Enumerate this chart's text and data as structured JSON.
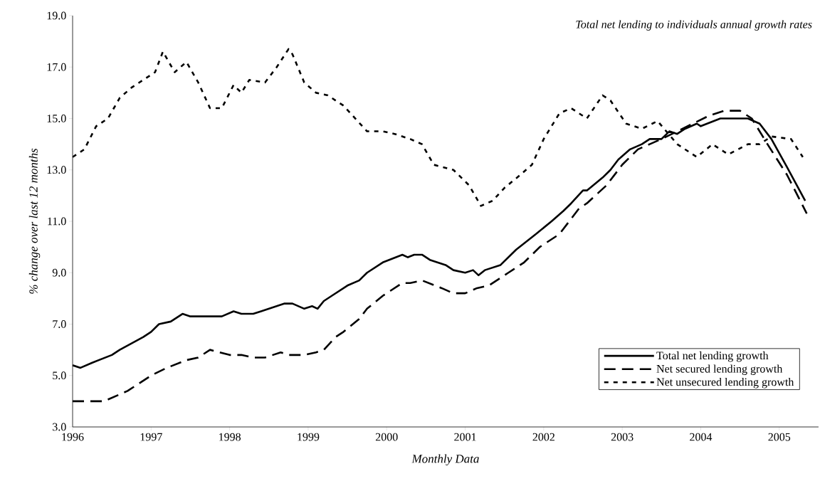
{
  "chart_data": {
    "type": "line",
    "title": "Total net lending to individuals annual growth rates",
    "xlabel": "Monthly Data",
    "ylabel": "% change over last 12 months",
    "xlim": [
      1996,
      2005.5
    ],
    "xticks": [
      1996,
      1997,
      1998,
      1999,
      2000,
      2001,
      2002,
      2003,
      2004,
      2005
    ],
    "ylim": [
      3,
      19
    ],
    "yticks": [
      {
        "value": 3,
        "label": "3.0"
      },
      {
        "value": 5,
        "label": "5.0"
      },
      {
        "value": 7,
        "label": "7.0"
      },
      {
        "value": 9,
        "label": "9.0"
      },
      {
        "value": 11,
        "label": "11.0"
      },
      {
        "value": 13,
        "label": "13.0"
      },
      {
        "value": 15,
        "label": "15.0"
      },
      {
        "value": 17,
        "label": "17.0"
      },
      {
        "value": 19,
        "label": "19.0"
      }
    ],
    "legend": "bottom right",
    "grid": false,
    "marker": "none",
    "series": [
      {
        "name": "Total net lending growth",
        "color": "#000000",
        "line_style": "solid",
        "x": [
          1996.0,
          1996.1,
          1996.25,
          1996.5,
          1996.6,
          1996.9,
          1997.0,
          1997.1,
          1997.25,
          1997.4,
          1997.5,
          1997.9,
          1998.05,
          1998.15,
          1998.3,
          1998.4,
          1998.7,
          1998.8,
          1998.95,
          1999.05,
          1999.12,
          1999.2,
          1999.3,
          1999.5,
          1999.65,
          1999.75,
          1999.95,
          2000.2,
          2000.27,
          2000.35,
          2000.45,
          2000.55,
          2000.75,
          2000.85,
          2001.0,
          2001.1,
          2001.17,
          2001.25,
          2001.45,
          2001.65,
          2001.9,
          2002.1,
          2002.25,
          2002.35,
          2002.5,
          2002.55,
          2002.75,
          2002.85,
          2002.95,
          2003.1,
          2003.25,
          2003.35,
          2003.5,
          2003.6,
          2003.7,
          2003.8,
          2003.95,
          2004.0,
          2004.25,
          2004.6,
          2004.75,
          2004.9,
          2005.1,
          2005.33
        ],
        "values": [
          5.4,
          5.3,
          5.5,
          5.8,
          6.0,
          6.5,
          6.7,
          7.0,
          7.1,
          7.4,
          7.3,
          7.3,
          7.5,
          7.4,
          7.4,
          7.5,
          7.8,
          7.8,
          7.6,
          7.7,
          7.6,
          7.9,
          8.1,
          8.5,
          8.7,
          9.0,
          9.4,
          9.7,
          9.6,
          9.7,
          9.7,
          9.5,
          9.3,
          9.1,
          9.0,
          9.1,
          8.9,
          9.1,
          9.3,
          9.9,
          10.5,
          11.0,
          11.4,
          11.7,
          12.2,
          12.2,
          12.7,
          13.0,
          13.4,
          13.8,
          14.0,
          14.2,
          14.2,
          14.5,
          14.4,
          14.6,
          14.8,
          14.7,
          15.0,
          15.0,
          14.8,
          14.2,
          13.1,
          11.8
        ]
      },
      {
        "name": "Net secured lending growth",
        "color": "#000000",
        "line_style": "dashed",
        "x": [
          1996.0,
          1996.4,
          1996.7,
          1997.0,
          1997.2,
          1997.45,
          1997.6,
          1997.75,
          1998.0,
          1998.15,
          1998.3,
          1998.45,
          1998.65,
          1998.75,
          1998.95,
          1999.1,
          1999.2,
          1999.35,
          1999.45,
          1999.65,
          1999.75,
          1999.95,
          2000.05,
          2000.2,
          2000.3,
          2000.45,
          2000.7,
          2000.85,
          2001.0,
          2001.15,
          2001.3,
          2001.55,
          2001.75,
          2001.95,
          2002.2,
          2002.45,
          2002.55,
          2002.8,
          2003.0,
          2003.2,
          2003.35,
          2003.5,
          2003.7,
          2003.9,
          2004.1,
          2004.3,
          2004.5,
          2004.65,
          2004.85,
          2005.1,
          2005.35
        ],
        "values": [
          4.0,
          4.0,
          4.4,
          5.0,
          5.3,
          5.6,
          5.7,
          6.0,
          5.8,
          5.8,
          5.7,
          5.7,
          5.9,
          5.8,
          5.8,
          5.9,
          6.0,
          6.5,
          6.7,
          7.2,
          7.6,
          8.1,
          8.3,
          8.6,
          8.6,
          8.7,
          8.4,
          8.2,
          8.2,
          8.4,
          8.5,
          9.0,
          9.4,
          10.0,
          10.5,
          11.5,
          11.7,
          12.4,
          13.2,
          13.8,
          14.0,
          14.2,
          14.5,
          14.8,
          15.1,
          15.3,
          15.3,
          15.0,
          14.0,
          12.8,
          11.3
        ]
      },
      {
        "name": "Net unsecured lending growth",
        "color": "#000000",
        "line_style": "dotted",
        "x": [
          1996.0,
          1996.15,
          1996.3,
          1996.45,
          1996.6,
          1996.75,
          1996.9,
          1997.05,
          1997.15,
          1997.3,
          1997.45,
          1997.6,
          1997.75,
          1997.9,
          1998.05,
          1998.15,
          1998.25,
          1998.45,
          1998.6,
          1998.75,
          1998.8,
          1998.95,
          1999.1,
          1999.25,
          1999.45,
          1999.75,
          1999.95,
          2000.1,
          2000.3,
          2000.45,
          2000.6,
          2000.85,
          2001.05,
          2001.2,
          2001.35,
          2001.5,
          2001.7,
          2001.85,
          2002.0,
          2002.2,
          2002.35,
          2002.55,
          2002.75,
          2002.85,
          2003.05,
          2003.25,
          2003.45,
          2003.7,
          2003.95,
          2004.15,
          2004.35,
          2004.6,
          2004.75,
          2004.9,
          2005.15,
          2005.3
        ],
        "values": [
          13.5,
          13.8,
          14.7,
          15.0,
          15.8,
          16.2,
          16.5,
          16.8,
          17.6,
          16.8,
          17.2,
          16.4,
          15.4,
          15.4,
          16.3,
          16.0,
          16.5,
          16.4,
          17.0,
          17.7,
          17.5,
          16.4,
          16.0,
          15.9,
          15.5,
          14.5,
          14.5,
          14.4,
          14.2,
          14.0,
          13.2,
          13.0,
          12.4,
          11.6,
          11.8,
          12.3,
          12.8,
          13.2,
          14.2,
          15.2,
          15.4,
          15.0,
          15.9,
          15.7,
          14.8,
          14.6,
          14.9,
          14.0,
          13.5,
          14.0,
          13.6,
          14.0,
          14.0,
          14.3,
          14.2,
          13.5
        ]
      }
    ]
  }
}
